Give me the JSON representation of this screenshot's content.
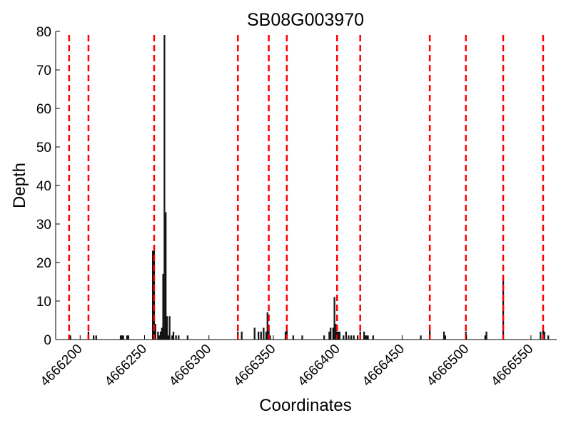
{
  "chart_data": {
    "type": "bar",
    "title": "SB08G003970",
    "xlabel": "Coordinates",
    "ylabel": "Depth",
    "xlim": [
      4666181,
      4666570
    ],
    "ylim": [
      0,
      80
    ],
    "x_ticks": [
      4666200,
      4666250,
      4666300,
      4666350,
      4666400,
      4666450,
      4666500,
      4666550
    ],
    "x_tick_labels": [
      "4666200",
      "4666250",
      "4666300",
      "4666350",
      "4666400",
      "4666450",
      "4666500",
      "4666550"
    ],
    "y_ticks": [
      0,
      10,
      20,
      30,
      40,
      50,
      60,
      70,
      80
    ],
    "y_tick_labels": [
      "0",
      "10",
      "20",
      "30",
      "40",
      "50",
      "60",
      "70",
      "80"
    ],
    "x_tick_rotation_deg": 45,
    "grid": false,
    "bar_color": "#222222",
    "boundary_color": "#ff0000",
    "boundaries": [
      4666191,
      4666206,
      4666257,
      4666322,
      4666346,
      4666360,
      4666399,
      4666417,
      4666471,
      4666499,
      4666528,
      4666559
    ],
    "series": [
      {
        "x": [
          4666191,
          4666192,
          4666206,
          4666210,
          4666212,
          4666231,
          4666232,
          4666233,
          4666236,
          4666237,
          4666256,
          4666257,
          4666258,
          4666260,
          4666261,
          4666262,
          4666263,
          4666264,
          4666265,
          4666266,
          4666267,
          4666268,
          4666269,
          4666271,
          4666272,
          4666274,
          4666276,
          4666283,
          4666322,
          4666325,
          4666335,
          4666338,
          4666340,
          4666342,
          4666344,
          4666345,
          4666346,
          4666347,
          4666359,
          4666360,
          4666365,
          4666372,
          4666389,
          4666393,
          4666394,
          4666396,
          4666397,
          4666398,
          4666399,
          4666400,
          4666401,
          4666404,
          4666406,
          4666408,
          4666410,
          4666412,
          4666415,
          4666417,
          4666420,
          4666421,
          4666422,
          4666423,
          4666427,
          4666464,
          4666471,
          4666482,
          4666483,
          4666499,
          4666514,
          4666515,
          4666528,
          4666557,
          4666559,
          4666560,
          4666563
        ],
        "values": [
          1,
          1,
          2,
          1,
          1,
          1,
          1,
          1,
          1,
          1,
          23,
          24,
          4,
          2,
          1,
          2,
          3,
          17,
          79,
          33,
          6,
          1,
          6,
          1,
          2,
          1,
          1,
          1,
          2,
          2,
          3,
          2,
          2,
          3,
          2,
          7,
          3,
          1,
          2,
          3,
          1,
          1,
          1,
          2,
          3,
          3,
          11,
          4,
          2,
          2,
          2,
          1,
          2,
          1,
          1,
          1,
          1,
          2,
          2,
          1,
          1,
          1,
          1,
          1,
          3,
          2,
          1,
          2,
          1,
          2,
          16,
          2,
          3,
          2,
          1
        ]
      }
    ]
  }
}
